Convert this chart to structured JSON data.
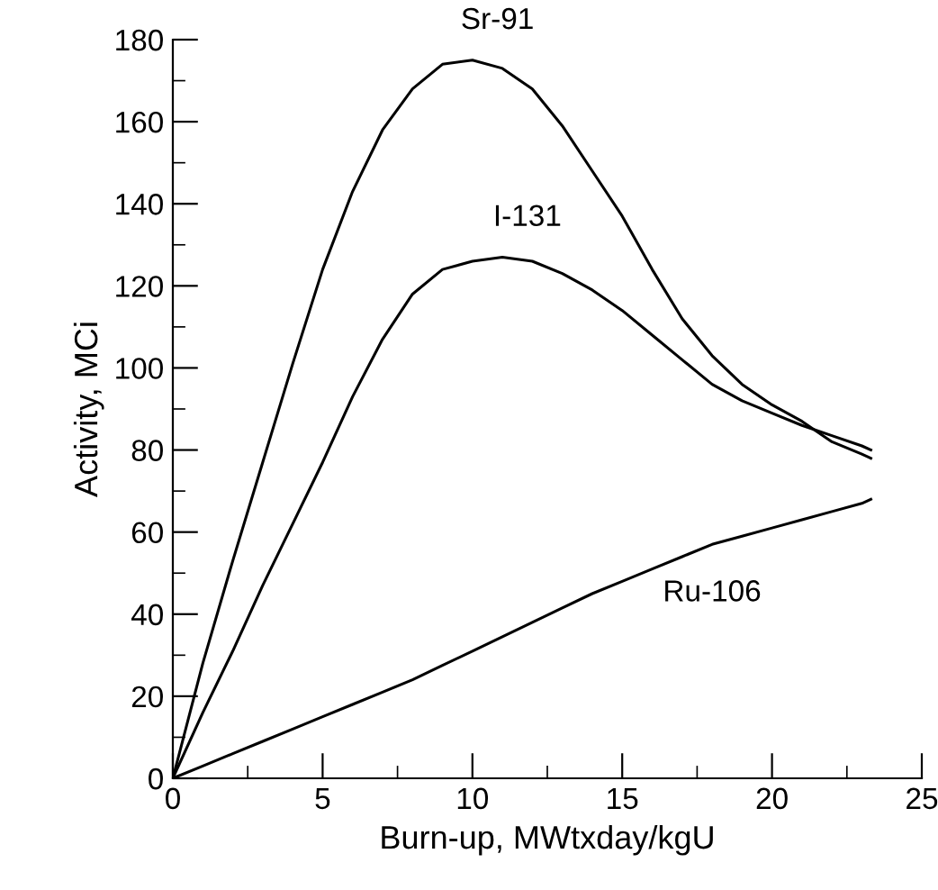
{
  "chart_data": {
    "type": "line",
    "xlabel": "Burn-up, MWtxday/kgU",
    "ylabel": "Activity, MCi",
    "x": [
      0,
      1,
      2,
      3,
      4,
      5,
      6,
      7,
      8,
      9,
      10,
      11,
      12,
      13,
      14,
      15,
      16,
      17,
      18,
      19,
      20,
      21,
      22,
      23,
      23.3
    ],
    "series": [
      {
        "name": "Sr-91",
        "color": "#000000",
        "values": [
          0,
          28,
          53,
          77,
          101,
          124,
          143,
          158,
          168,
          174,
          175,
          173,
          168,
          159,
          148,
          137,
          124,
          112,
          103,
          96,
          91,
          87,
          82,
          79,
          78
        ]
      },
      {
        "name": "I-131",
        "color": "#000000",
        "values": [
          0,
          16,
          31,
          47,
          62,
          77,
          93,
          107,
          118,
          124,
          126,
          127,
          126,
          123,
          119,
          114,
          108,
          102,
          96,
          92,
          89,
          86,
          83.5,
          81,
          80
        ]
      },
      {
        "name": "Ru-106",
        "color": "#000000",
        "values": [
          0,
          3,
          6,
          9,
          12,
          15,
          18,
          21,
          24,
          27.5,
          31,
          34.5,
          38,
          41.5,
          45,
          48,
          51,
          54,
          57,
          59,
          61,
          63,
          65,
          67,
          68
        ]
      }
    ],
    "xlim": [
      0,
      25
    ],
    "xticks": [
      0,
      5,
      10,
      15,
      20,
      25
    ],
    "ylim": [
      0,
      180
    ],
    "yticks": [
      0,
      20,
      40,
      60,
      80,
      100,
      120,
      140,
      160,
      180
    ],
    "grid": false,
    "legend": false,
    "marker": "none",
    "line_style": "solid"
  }
}
